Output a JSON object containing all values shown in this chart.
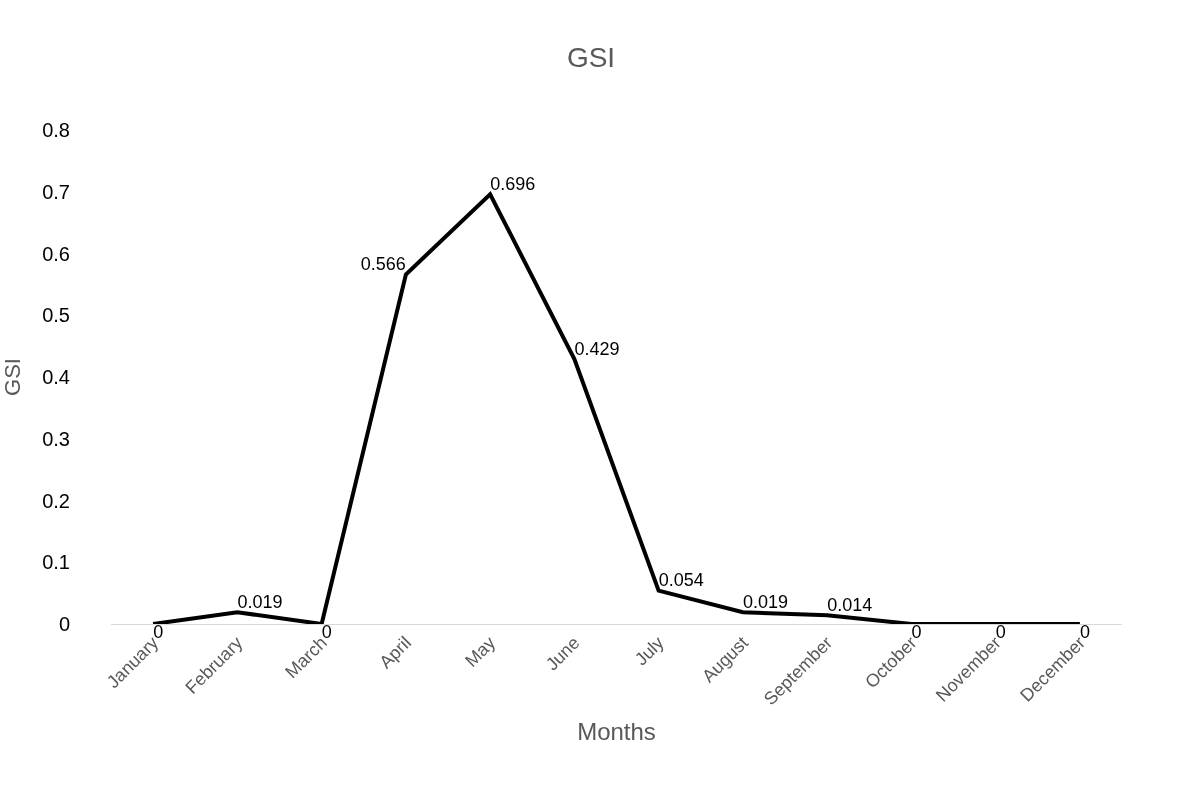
{
  "chart_data": {
    "type": "line",
    "title": "GSI",
    "xlabel": "Months",
    "ylabel": "GSI",
    "categories": [
      "January",
      "February",
      "March",
      "April",
      "May",
      "June",
      "July",
      "August",
      "September",
      "October",
      "November",
      "December"
    ],
    "series": [
      {
        "color": "#000000",
        "values": [
          0,
          0.019,
          0,
          0.566,
          0.696,
          0.429,
          0.054,
          0.019,
          0.014,
          0,
          0,
          0
        ]
      }
    ],
    "ylim": [
      0,
      0.8
    ],
    "yticks": [
      0,
      0.1,
      0.2,
      0.3,
      0.4,
      0.5,
      0.6,
      0.7,
      0.8
    ],
    "data_labels": true,
    "grid": false,
    "marker": "none",
    "line_style": "solid"
  }
}
